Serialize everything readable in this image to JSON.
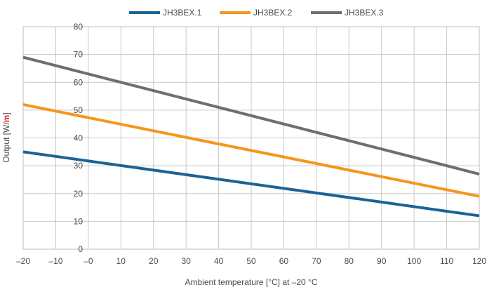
{
  "chart_data": {
    "type": "line",
    "xlabel": "Ambient temperature [°C] at –20 °C",
    "ylabel_prefix": "Output [W/",
    "ylabel_unit": "m",
    "ylabel_suffix": "]",
    "x_ticks": [
      {
        "value": -20,
        "label": "–20"
      },
      {
        "value": -10,
        "label": "–10"
      },
      {
        "value": 0,
        "label": "–0"
      },
      {
        "value": 10,
        "label": "10"
      },
      {
        "value": 20,
        "label": "20"
      },
      {
        "value": 30,
        "label": "30"
      },
      {
        "value": 40,
        "label": "40"
      },
      {
        "value": 50,
        "label": "50"
      },
      {
        "value": 60,
        "label": "60"
      },
      {
        "value": 70,
        "label": "70"
      },
      {
        "value": 80,
        "label": "80"
      },
      {
        "value": 90,
        "label": "90"
      },
      {
        "value": 100,
        "label": "100"
      },
      {
        "value": 110,
        "label": "110"
      },
      {
        "value": 120,
        "label": "120"
      }
    ],
    "y_ticks": [
      0,
      10,
      20,
      30,
      40,
      50,
      60,
      70,
      80
    ],
    "xlim": [
      -20,
      120
    ],
    "ylim": [
      0,
      80
    ],
    "grid": true,
    "legend_position": "top",
    "series": [
      {
        "name": "JH3BEX.1",
        "color": "#1c6395",
        "x": [
          -20,
          120
        ],
        "y": [
          35,
          12
        ]
      },
      {
        "name": "JH3BEX.2",
        "color": "#f5961e",
        "x": [
          -20,
          120
        ],
        "y": [
          52,
          19
        ]
      },
      {
        "name": "JH3BEX.3",
        "color": "#6e6e6e",
        "x": [
          -20,
          120
        ],
        "y": [
          69,
          27
        ]
      }
    ]
  }
}
